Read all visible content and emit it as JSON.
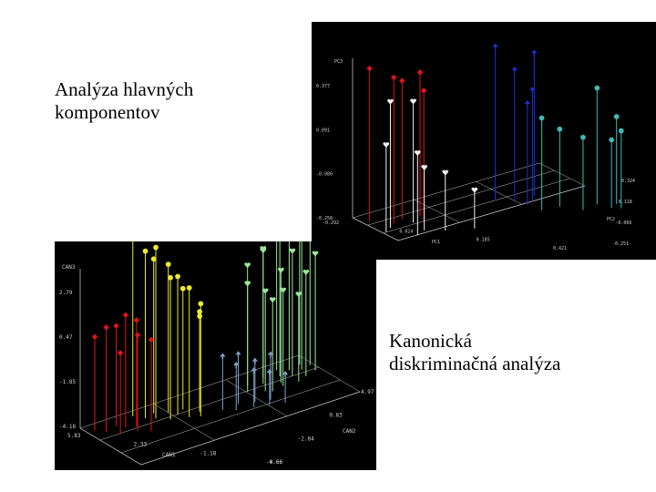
{
  "captions": {
    "pca": [
      "Analýza hlavných",
      "komponentov"
    ],
    "cda": [
      "Kanonická",
      "diskriminačná analýza"
    ]
  },
  "colors": {
    "background": "#000000",
    "group_red": "#e0141b",
    "group_white": "#f2f2f2",
    "group_blue": "#1d2fd8",
    "group_cyan": "#3fb8b8",
    "group_yellow": "#ecec2a",
    "group_steel": "#7fa2c8",
    "group_lightgreen": "#9be89b"
  },
  "chart_data": [
    {
      "type": "scatter",
      "title": "",
      "axes": {
        "vertical": {
          "label": "PC3",
          "ticks": [
            "0.377",
            "0.091",
            "-0.080",
            "-0.258"
          ]
        },
        "right": {
          "label": "PC2",
          "ticks": [
            "0.324",
            "0.118",
            "-0.066",
            "-0.251"
          ]
        },
        "bottom": {
          "label": "PC1",
          "ticks": [
            "-0.292",
            "0.024",
            "0.185",
            "0.421"
          ]
        }
      },
      "grid": true,
      "series": [
        {
          "color_key": "group_red",
          "marker": "diamond",
          "points": [
            [
              -0.27,
              0.2,
              0.37
            ],
            [
              -0.22,
              0.1,
              0.34
            ],
            [
              -0.18,
              0.16,
              0.31
            ],
            [
              -0.14,
              0.05,
              0.28
            ],
            [
              -0.12,
              0.18,
              0.33
            ]
          ]
        },
        {
          "color_key": "group_white",
          "marker": "heart",
          "points": [
            [
              -0.28,
              -0.05,
              0.1
            ],
            [
              -0.25,
              0.02,
              0.26
            ],
            [
              -0.22,
              -0.2,
              0.08
            ],
            [
              -0.18,
              -0.12,
              0.0
            ],
            [
              -0.13,
              -0.18,
              -0.02
            ],
            [
              -0.05,
              -0.22,
              -0.1
            ],
            [
              -0.17,
              0.06,
              0.24
            ]
          ]
        },
        {
          "color_key": "group_blue",
          "marker": "spade",
          "points": [
            [
              0.14,
              0.3,
              0.37
            ],
            [
              0.18,
              0.22,
              0.28
            ],
            [
              0.22,
              0.16,
              0.2
            ],
            [
              0.19,
              0.1,
              0.16
            ],
            [
              0.25,
              0.26,
              0.33
            ]
          ]
        },
        {
          "color_key": "group_cyan",
          "marker": "club",
          "points": [
            [
              0.2,
              -0.04,
              0.12
            ],
            [
              0.26,
              -0.02,
              0.06
            ],
            [
              0.3,
              -0.15,
              0.04
            ],
            [
              0.36,
              -0.08,
              0.22
            ],
            [
              0.38,
              -0.18,
              0.02
            ],
            [
              0.4,
              -0.22,
              0.06
            ],
            [
              0.41,
              -0.12,
              0.1
            ]
          ]
        }
      ]
    },
    {
      "type": "scatter",
      "title": "",
      "axes": {
        "vertical": {
          "label": "CAN3",
          "ticks": [
            "2.79",
            "0.47",
            "-1.85",
            "-4.18"
          ]
        },
        "right": {
          "label": "CAN2",
          "ticks": [
            "4.97",
            "0.83",
            "-2.84",
            "-6.66"
          ]
        },
        "bottom": {
          "label": "CAN1",
          "ticks": [
            "5.83",
            "2.33",
            "-1.18",
            "-4.66"
          ]
        }
      },
      "grid": true,
      "series": [
        {
          "color_key": "group_red",
          "marker": "diamond",
          "points": [
            [
              5.5,
              3.5,
              0.3
            ],
            [
              5.2,
              2.5,
              0.8
            ],
            [
              4.9,
              1.0,
              -0.3
            ],
            [
              4.6,
              3.0,
              0.6
            ],
            [
              4.4,
              2.0,
              1.2
            ],
            [
              4.2,
              0.5,
              0.4
            ],
            [
              4.0,
              1.5,
              0.9
            ],
            [
              3.8,
              -0.5,
              0.2
            ]
          ]
        },
        {
          "color_key": "group_yellow",
          "marker": "club",
          "points": [
            [
              3.6,
              3.8,
              4.5
            ],
            [
              3.3,
              2.6,
              3.8
            ],
            [
              3.0,
              1.8,
              4.0
            ],
            [
              2.8,
              3.0,
              3.2
            ],
            [
              2.6,
              0.6,
              2.6
            ],
            [
              2.3,
              2.2,
              2.9
            ],
            [
              2.1,
              1.2,
              2.4
            ],
            [
              1.9,
              -0.2,
              2.0
            ],
            [
              1.7,
              1.8,
              1.6
            ],
            [
              1.5,
              -0.8,
              1.2
            ],
            [
              1.3,
              0.2,
              0.6
            ],
            [
              1.1,
              1.0,
              0.2
            ]
          ]
        },
        {
          "color_key": "group_steel",
          "marker": "spade",
          "points": [
            [
              0.5,
              -1.0,
              -1.6
            ],
            [
              0.1,
              -2.0,
              -2.0
            ],
            [
              -0.3,
              -0.8,
              -1.8
            ],
            [
              -0.6,
              -2.6,
              -2.4
            ],
            [
              -0.9,
              -1.6,
              -2.2
            ],
            [
              -1.2,
              -3.2,
              -2.6
            ],
            [
              -1.5,
              -2.2,
              -2.0
            ],
            [
              -1.8,
              -3.8,
              -2.8
            ]
          ]
        },
        {
          "color_key": "group_lightgreen",
          "marker": "heart",
          "points": [
            [
              -1.2,
              1.0,
              1.0
            ],
            [
              -1.5,
              2.2,
              1.6
            ],
            [
              -1.8,
              0.0,
              0.6
            ],
            [
              -2.1,
              1.6,
              2.2
            ],
            [
              -2.4,
              2.8,
              2.0
            ],
            [
              -2.7,
              0.6,
              1.2
            ],
            [
              -3.0,
              2.0,
              2.6
            ],
            [
              -3.2,
              3.4,
              2.4
            ],
            [
              -3.4,
              1.2,
              1.8
            ],
            [
              -3.6,
              2.6,
              3.0
            ],
            [
              -3.8,
              0.2,
              0.8
            ],
            [
              -4.0,
              1.8,
              2.2
            ],
            [
              -4.2,
              3.0,
              2.8
            ],
            [
              -4.4,
              0.8,
              1.4
            ],
            [
              -4.5,
              2.2,
              2.0
            ],
            [
              -2.0,
              -0.6,
              0.2
            ],
            [
              -2.6,
              -0.2,
              0.4
            ],
            [
              -3.3,
              -0.4,
              0.0
            ]
          ]
        }
      ]
    }
  ]
}
